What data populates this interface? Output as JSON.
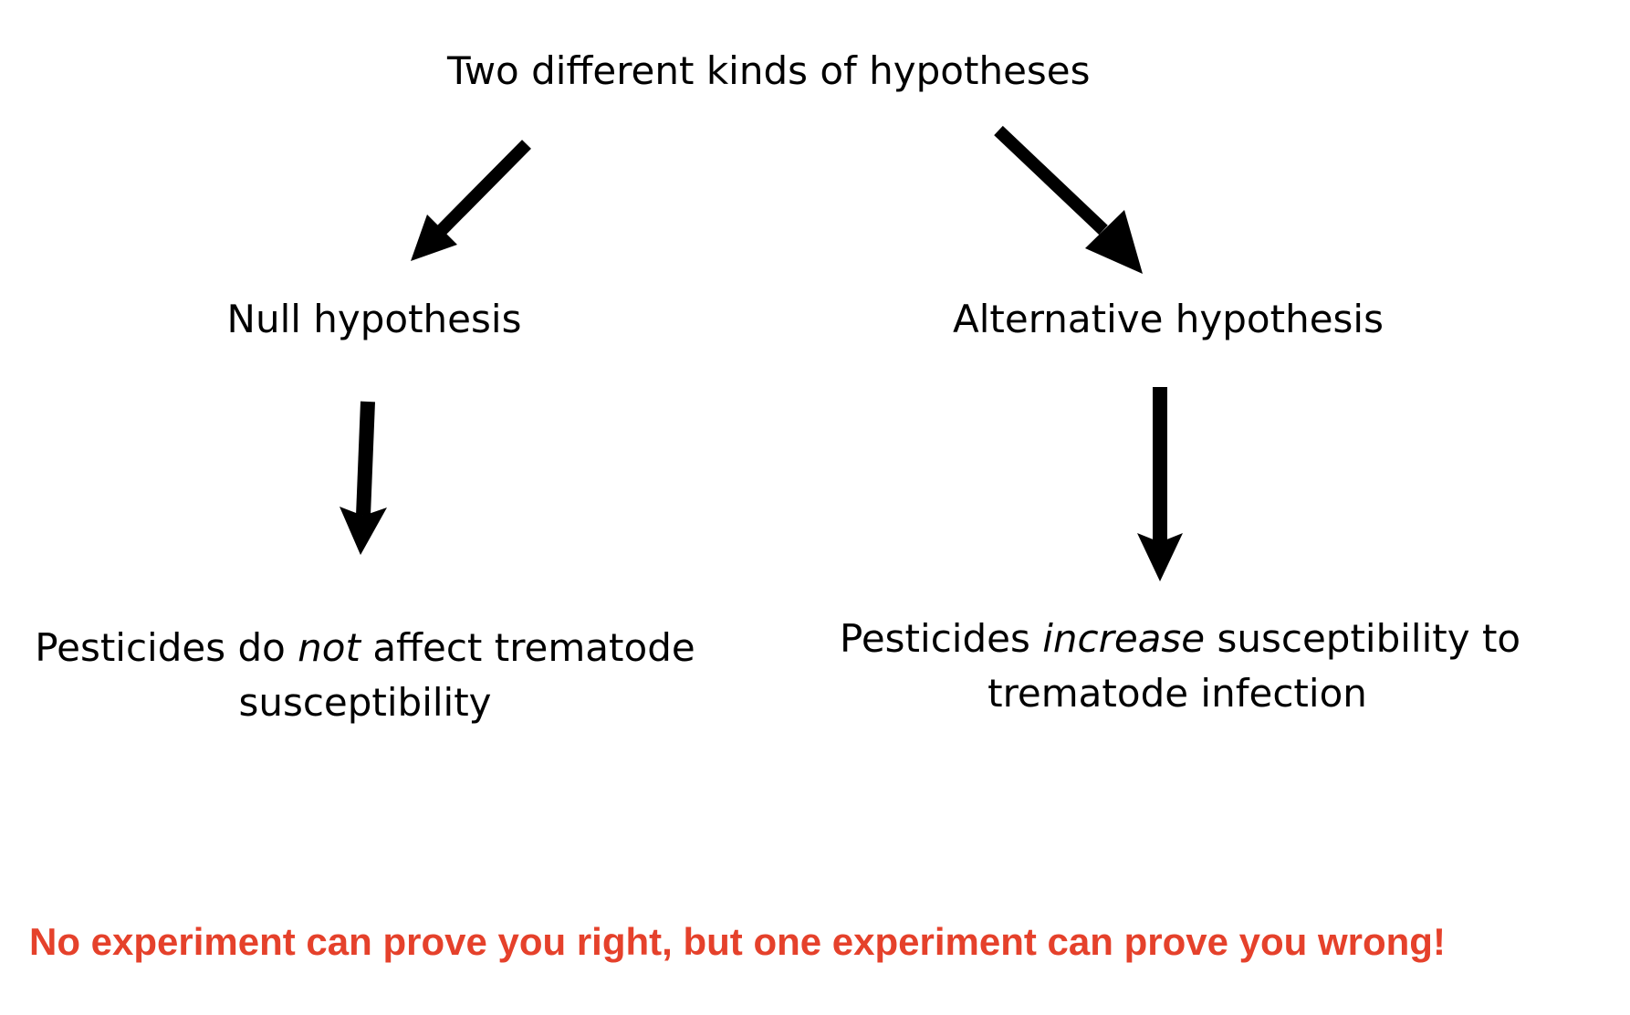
{
  "title": "Two different kinds of hypotheses",
  "null": {
    "label": "Null hypothesis",
    "prediction_pre": "Pesticides do ",
    "prediction_emph": "not",
    "prediction_post": " affect trematode",
    "prediction_line2": "susceptibility"
  },
  "alternative": {
    "label": "Alternative hypothesis",
    "prediction_pre": "Pesticides ",
    "prediction_emph": "increase",
    "prediction_post": " susceptibility to",
    "prediction_line2": "trematode infection"
  },
  "footer": "No experiment can prove you right, but one experiment can prove you wrong!",
  "colors": {
    "text": "#000000",
    "footer": "#e5412b",
    "arrow": "#000000"
  }
}
